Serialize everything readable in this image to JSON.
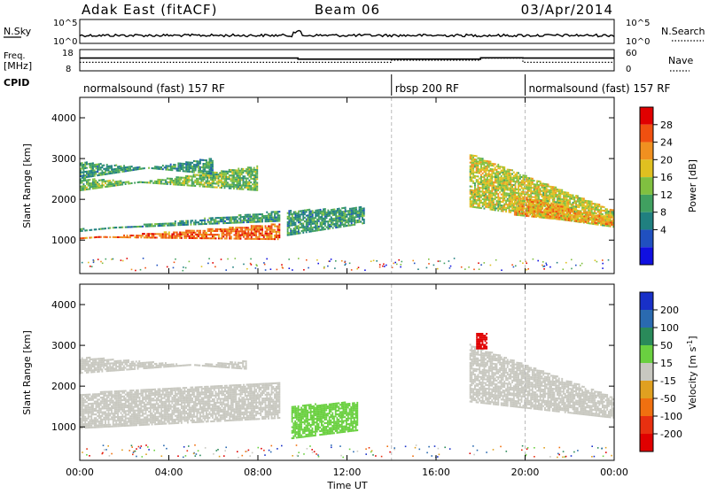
{
  "header": {
    "station": "Adak East (fitACF)",
    "beam": "Beam 06",
    "date": "03/Apr/2014"
  },
  "nsky_panel": {
    "left_label": "N.Sky",
    "right_label": "N.Search",
    "left_ticks": [
      {
        "base": "10",
        "exp": "^5"
      },
      {
        "base": "10",
        "exp": "^0"
      }
    ],
    "right_ticks": [
      {
        "base": "10",
        "exp": "^5"
      },
      {
        "base": "10",
        "exp": "^0"
      }
    ]
  },
  "freq_panel": {
    "left_label_1": "Freq.",
    "left_label_2": "[MHz]",
    "right_label": "Nave",
    "left_ticks": [
      "18",
      "8"
    ],
    "right_ticks": [
      "60",
      "0"
    ],
    "freq_steps": [
      [
        0,
        12
      ],
      [
        9.8,
        11
      ],
      [
        18.0,
        12.2
      ],
      [
        19.9,
        12
      ]
    ],
    "nave_steps": [
      [
        0,
        8
      ],
      [
        14.0,
        10
      ],
      [
        18.0,
        12
      ],
      [
        19.9,
        8
      ]
    ]
  },
  "cpid": {
    "label": "CPID",
    "segments": [
      {
        "start": 0,
        "end": 14.0,
        "text": "normalsound (fast) 157 RF"
      },
      {
        "start": 14.0,
        "end": 20.0,
        "text": "rbsp 200 RF"
      },
      {
        "start": 20.0,
        "end": 24,
        "text": "normalsound (fast) 157 RF"
      }
    ]
  },
  "power_panel": {
    "ylabel": "Slant Range [km]",
    "yticks": [
      "1000",
      "2000",
      "3000",
      "4000"
    ],
    "cbar_label": "Power [dB]",
    "cbar_ticks": [
      "4",
      "8",
      "12",
      "16",
      "20",
      "24",
      "28"
    ],
    "cbar_colors": [
      "#1010e0",
      "#2050c0",
      "#208080",
      "#40a060",
      "#80c040",
      "#e0c020",
      "#f09020",
      "#f05010",
      "#e00000"
    ]
  },
  "velocity_panel": {
    "ylabel": "Slant Range [km]",
    "yticks": [
      "1000",
      "2000",
      "3000",
      "4000"
    ],
    "cbar_label": "Velocity [m s",
    "cbar_label_sup": "-1",
    "cbar_label_end": "]",
    "cbar_ticks": [
      "200",
      "100",
      "50",
      "15",
      "-15",
      "-50",
      "-100",
      "-200"
    ],
    "cbar_colors": [
      "#1830c8",
      "#2a6ab0",
      "#2a8a5a",
      "#6ad040",
      "#c8c8c0",
      "#e0a020",
      "#f07010",
      "#e83010",
      "#e00000"
    ]
  },
  "xaxis": {
    "label": "Time UT",
    "ticks": [
      "00:00",
      "04:00",
      "08:00",
      "12:00",
      "16:00",
      "20:00",
      "00:00"
    ]
  },
  "chart_data": [
    {
      "type": "heatmap",
      "quantity": "Power",
      "x_unit": "hours UT",
      "y_unit": "km",
      "xlim": [
        0,
        24
      ],
      "ylim": [
        180,
        4500
      ],
      "cells": [
        {
          "t0": 0.0,
          "t1": 9.0,
          "r0": [
            1020,
            1060
          ],
          "r1": [
            1380,
            1000
          ],
          "level": 28
        },
        {
          "t0": 0.0,
          "t1": 9.0,
          "r0": [
            1200,
            1250
          ],
          "r1": [
            1700,
            1450
          ],
          "level": 12
        },
        {
          "t0": 0.0,
          "t1": 8.0,
          "r0": [
            2200,
            2500
          ],
          "r1": [
            2800,
            2200
          ],
          "level": 16
        },
        {
          "t0": 0.0,
          "t1": 6.0,
          "r0": [
            2500,
            2900
          ],
          "r1": [
            3000,
            2600
          ],
          "level": 12
        },
        {
          "t0": 9.3,
          "t1": 12.8,
          "r0": [
            1100,
            1700
          ],
          "r1": [
            1400,
            1800
          ],
          "level": 12
        },
        {
          "t0": 17.5,
          "t1": 24.0,
          "r0": [
            1800,
            3100
          ],
          "r1": [
            1300,
            1700
          ],
          "level": 20
        },
        {
          "t0": 19.5,
          "t1": 24.0,
          "r0": [
            1600,
            2100
          ],
          "r1": [
            1350,
            1500
          ],
          "level": 24
        }
      ]
    },
    {
      "type": "heatmap",
      "quantity": "Velocity",
      "x_unit": "hours UT",
      "y_unit": "km",
      "xlim": [
        0,
        24
      ],
      "ylim": [
        180,
        4500
      ],
      "cells": [
        {
          "t0": 0.0,
          "t1": 9.0,
          "r0": [
            950,
            1800
          ],
          "r1": [
            1200,
            2100
          ],
          "level": 0
        },
        {
          "t0": 0.0,
          "t1": 7.5,
          "r0": [
            2300,
            2700
          ],
          "r1": [
            2600,
            2400
          ],
          "level": 0
        },
        {
          "t0": 9.5,
          "t1": 12.5,
          "r0": [
            700,
            1500
          ],
          "r1": [
            900,
            1600
          ],
          "level": 50
        },
        {
          "t0": 17.5,
          "t1": 24.0,
          "r0": [
            1600,
            3000
          ],
          "r1": [
            1200,
            1700
          ],
          "level": 0
        },
        {
          "t0": 17.8,
          "t1": 18.3,
          "r0": [
            2900,
            3300
          ],
          "r1": [
            2900,
            3300
          ],
          "level": -200
        }
      ]
    }
  ]
}
